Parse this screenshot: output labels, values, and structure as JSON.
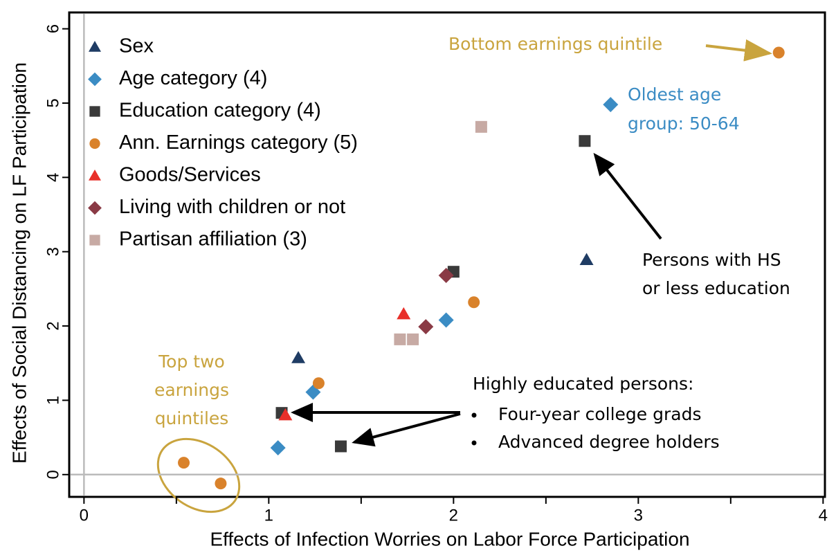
{
  "chart_data": {
    "type": "scatter",
    "xlabel": "Effects of Infection Worries on Labor Force Participation",
    "ylabel": "Effects of Social Distancing on LF Participation",
    "xlim": [
      -0.08,
      4.01
    ],
    "ylim": [
      -0.3,
      6.22
    ],
    "xticks": [
      0,
      1,
      2,
      3,
      4
    ],
    "xminorticks": [
      0.5,
      1.5,
      2.5,
      3.5
    ],
    "yticks": [
      0,
      1,
      2,
      3,
      4,
      5,
      6
    ],
    "zero_lines": true,
    "legend": "upper left",
    "series": [
      {
        "name": "Sex",
        "color": "#1f3c64",
        "marker": "triangle",
        "x": [
          1.16,
          2.72
        ],
        "values": [
          1.57,
          2.89
        ]
      },
      {
        "name": "Age category (4)",
        "color": "#3b8cc4",
        "marker": "diamond",
        "x": [
          1.05,
          1.24,
          1.96,
          2.85
        ],
        "values": [
          0.36,
          1.11,
          2.08,
          4.98
        ]
      },
      {
        "name": "Education category (4)",
        "color": "#3a3a3a",
        "marker": "square",
        "x": [
          1.07,
          1.39,
          2.0,
          2.71
        ],
        "values": [
          0.83,
          0.38,
          2.73,
          4.49
        ]
      },
      {
        "name": "Ann. Earnings category (5)",
        "color": "#d9822b",
        "marker": "circle",
        "x": [
          0.54,
          0.74,
          1.27,
          2.11,
          3.76
        ],
        "values": [
          0.16,
          -0.12,
          1.23,
          2.32,
          5.68
        ]
      },
      {
        "name": "Goods/Services",
        "color": "#e8302a",
        "marker": "triangle",
        "x": [
          1.09,
          1.73
        ],
        "values": [
          0.8,
          2.16
        ]
      },
      {
        "name": "Living with children or not",
        "color": "#8a3a45",
        "marker": "diamond",
        "x": [
          1.85,
          1.96
        ],
        "values": [
          1.99,
          2.68
        ]
      },
      {
        "name": "Partisan affiliation (3)",
        "color": "#c7aaa4",
        "marker": "square",
        "x": [
          1.71,
          1.78,
          2.15
        ],
        "values": [
          1.82,
          1.82,
          4.68
        ]
      }
    ],
    "annotations": [
      {
        "lines": [
          "Bottom earnings quintile"
        ],
        "color": "#c9a43e"
      },
      {
        "lines": [
          "Oldest age",
          "group: 50-64"
        ],
        "color": "#3b8cc4"
      },
      {
        "lines": [
          "Persons with HS",
          "or less education"
        ],
        "color": "#000000"
      },
      {
        "lines": [
          "Highly educated persons:"
        ],
        "bullets": [
          "Four-year college grads",
          "Advanced degree holders"
        ],
        "color": "#000000"
      },
      {
        "lines": [
          "Top two",
          "earnings",
          "quintiles"
        ],
        "color": "#c9a43e"
      }
    ]
  }
}
